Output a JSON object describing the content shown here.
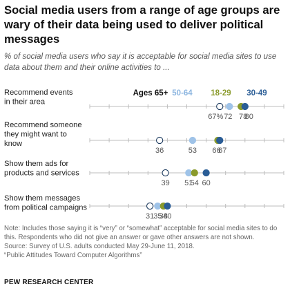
{
  "title": "Social media users from a range of age groups are wary of their data being used to deliver political messages",
  "subtitle": "% of social media users who say it is acceptable for social media sites to use data about them and their online activities to ...",
  "notes": [
    "Note: Includes those saying it is “very” or “somewhat” acceptable for social media sites to do",
    "this. Respondents who did not give an answer or gave other answers are not shown.",
    "Source: Survey of U.S. adults conducted May 29-June 11, 2018.",
    "“Public Attitudes Toward Computer Algorithms”"
  ],
  "brand": "PEW RESEARCH CENTER",
  "chart_data": {
    "type": "scatter",
    "xlim": [
      0,
      100
    ],
    "categories": [
      "Recommend events in their area",
      "Recommend someone they might want to know",
      "Show them ads for products and services",
      "Show them messages from political campaigns"
    ],
    "category_lines": [
      [
        "Recommend events",
        "in their area"
      ],
      [
        "Recommend someone",
        "they might want to",
        "know"
      ],
      [
        "Show them ads for",
        "products and services"
      ],
      [
        "Show them messages",
        "from political campaigns"
      ]
    ],
    "series": [
      {
        "name": "Ages 65+",
        "color": "#ffffff",
        "stroke": "#1c3a5e",
        "label_color": "#111111",
        "values": [
          67,
          36,
          39,
          31
        ]
      },
      {
        "name": "50-64",
        "color": "#9fc3e8",
        "stroke": "#9fc3e8",
        "label_color": "#8db6e0",
        "values": [
          72,
          53,
          51,
          35
        ]
      },
      {
        "name": "18-29",
        "color": "#8a9a2c",
        "stroke": "#8a9a2c",
        "label_color": "#8a9a2c",
        "values": [
          78,
          66,
          54,
          38
        ]
      },
      {
        "name": "30-49",
        "color": "#2a5d96",
        "stroke": "#2a5d96",
        "label_color": "#2a5d96",
        "values": [
          80,
          67,
          60,
          40
        ]
      }
    ],
    "value_labels": [
      [
        "67%",
        "72",
        "78",
        "80"
      ],
      [
        "36",
        "53",
        "66",
        "67"
      ],
      [
        "39",
        "51",
        "54",
        "60"
      ],
      [
        "31",
        "35",
        "38",
        "40"
      ]
    ]
  }
}
